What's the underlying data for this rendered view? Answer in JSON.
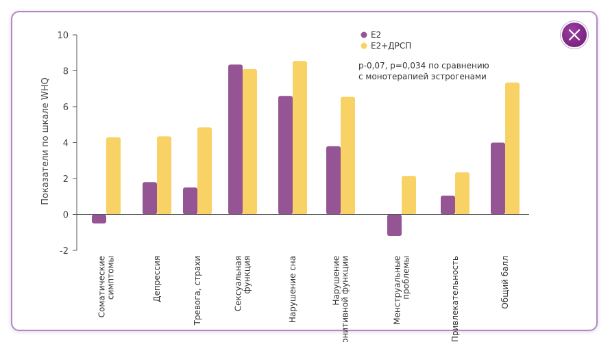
{
  "colors": {
    "e2": "#955594",
    "e2drsp": "#f8d264",
    "frame": "#b089c0",
    "close_button": "#7a2282"
  },
  "close_button": {
    "icon": "close-icon"
  },
  "chart_data": {
    "type": "bar",
    "ylabel": "Показатели по шкале WHQ",
    "ylim": [
      -2,
      10
    ],
    "yticks": [
      "10",
      "8",
      "6",
      "4",
      "2",
      "0",
      "-2"
    ],
    "ytick_values": [
      10,
      8,
      6,
      4,
      2,
      0,
      -2
    ],
    "categories": [
      [
        "Соматические",
        "симптомы"
      ],
      [
        "Депрессия"
      ],
      [
        "Тревога, страхи"
      ],
      [
        "Сексуальная",
        "функция"
      ],
      [
        "Нарушение сна"
      ],
      [
        "Нарушение",
        "конитивной функции"
      ],
      [
        "Менструальные",
        "проблемы"
      ],
      [
        "Привлекательность"
      ],
      [
        "Общий балл"
      ]
    ],
    "series": [
      {
        "name": "Е2",
        "values": [
          -0.5,
          1.8,
          1.5,
          8.35,
          6.6,
          3.8,
          -1.2,
          1.05,
          4.0
        ]
      },
      {
        "name": "Е2+ДРСП",
        "values": [
          4.3,
          4.35,
          4.85,
          8.1,
          8.55,
          6.55,
          2.15,
          2.35,
          7.35
        ]
      }
    ],
    "legend_position": "top-right",
    "annotation": [
      "p-0,07, p=0,034 по сравнению",
      "с монотерапией эстрогенами"
    ]
  }
}
